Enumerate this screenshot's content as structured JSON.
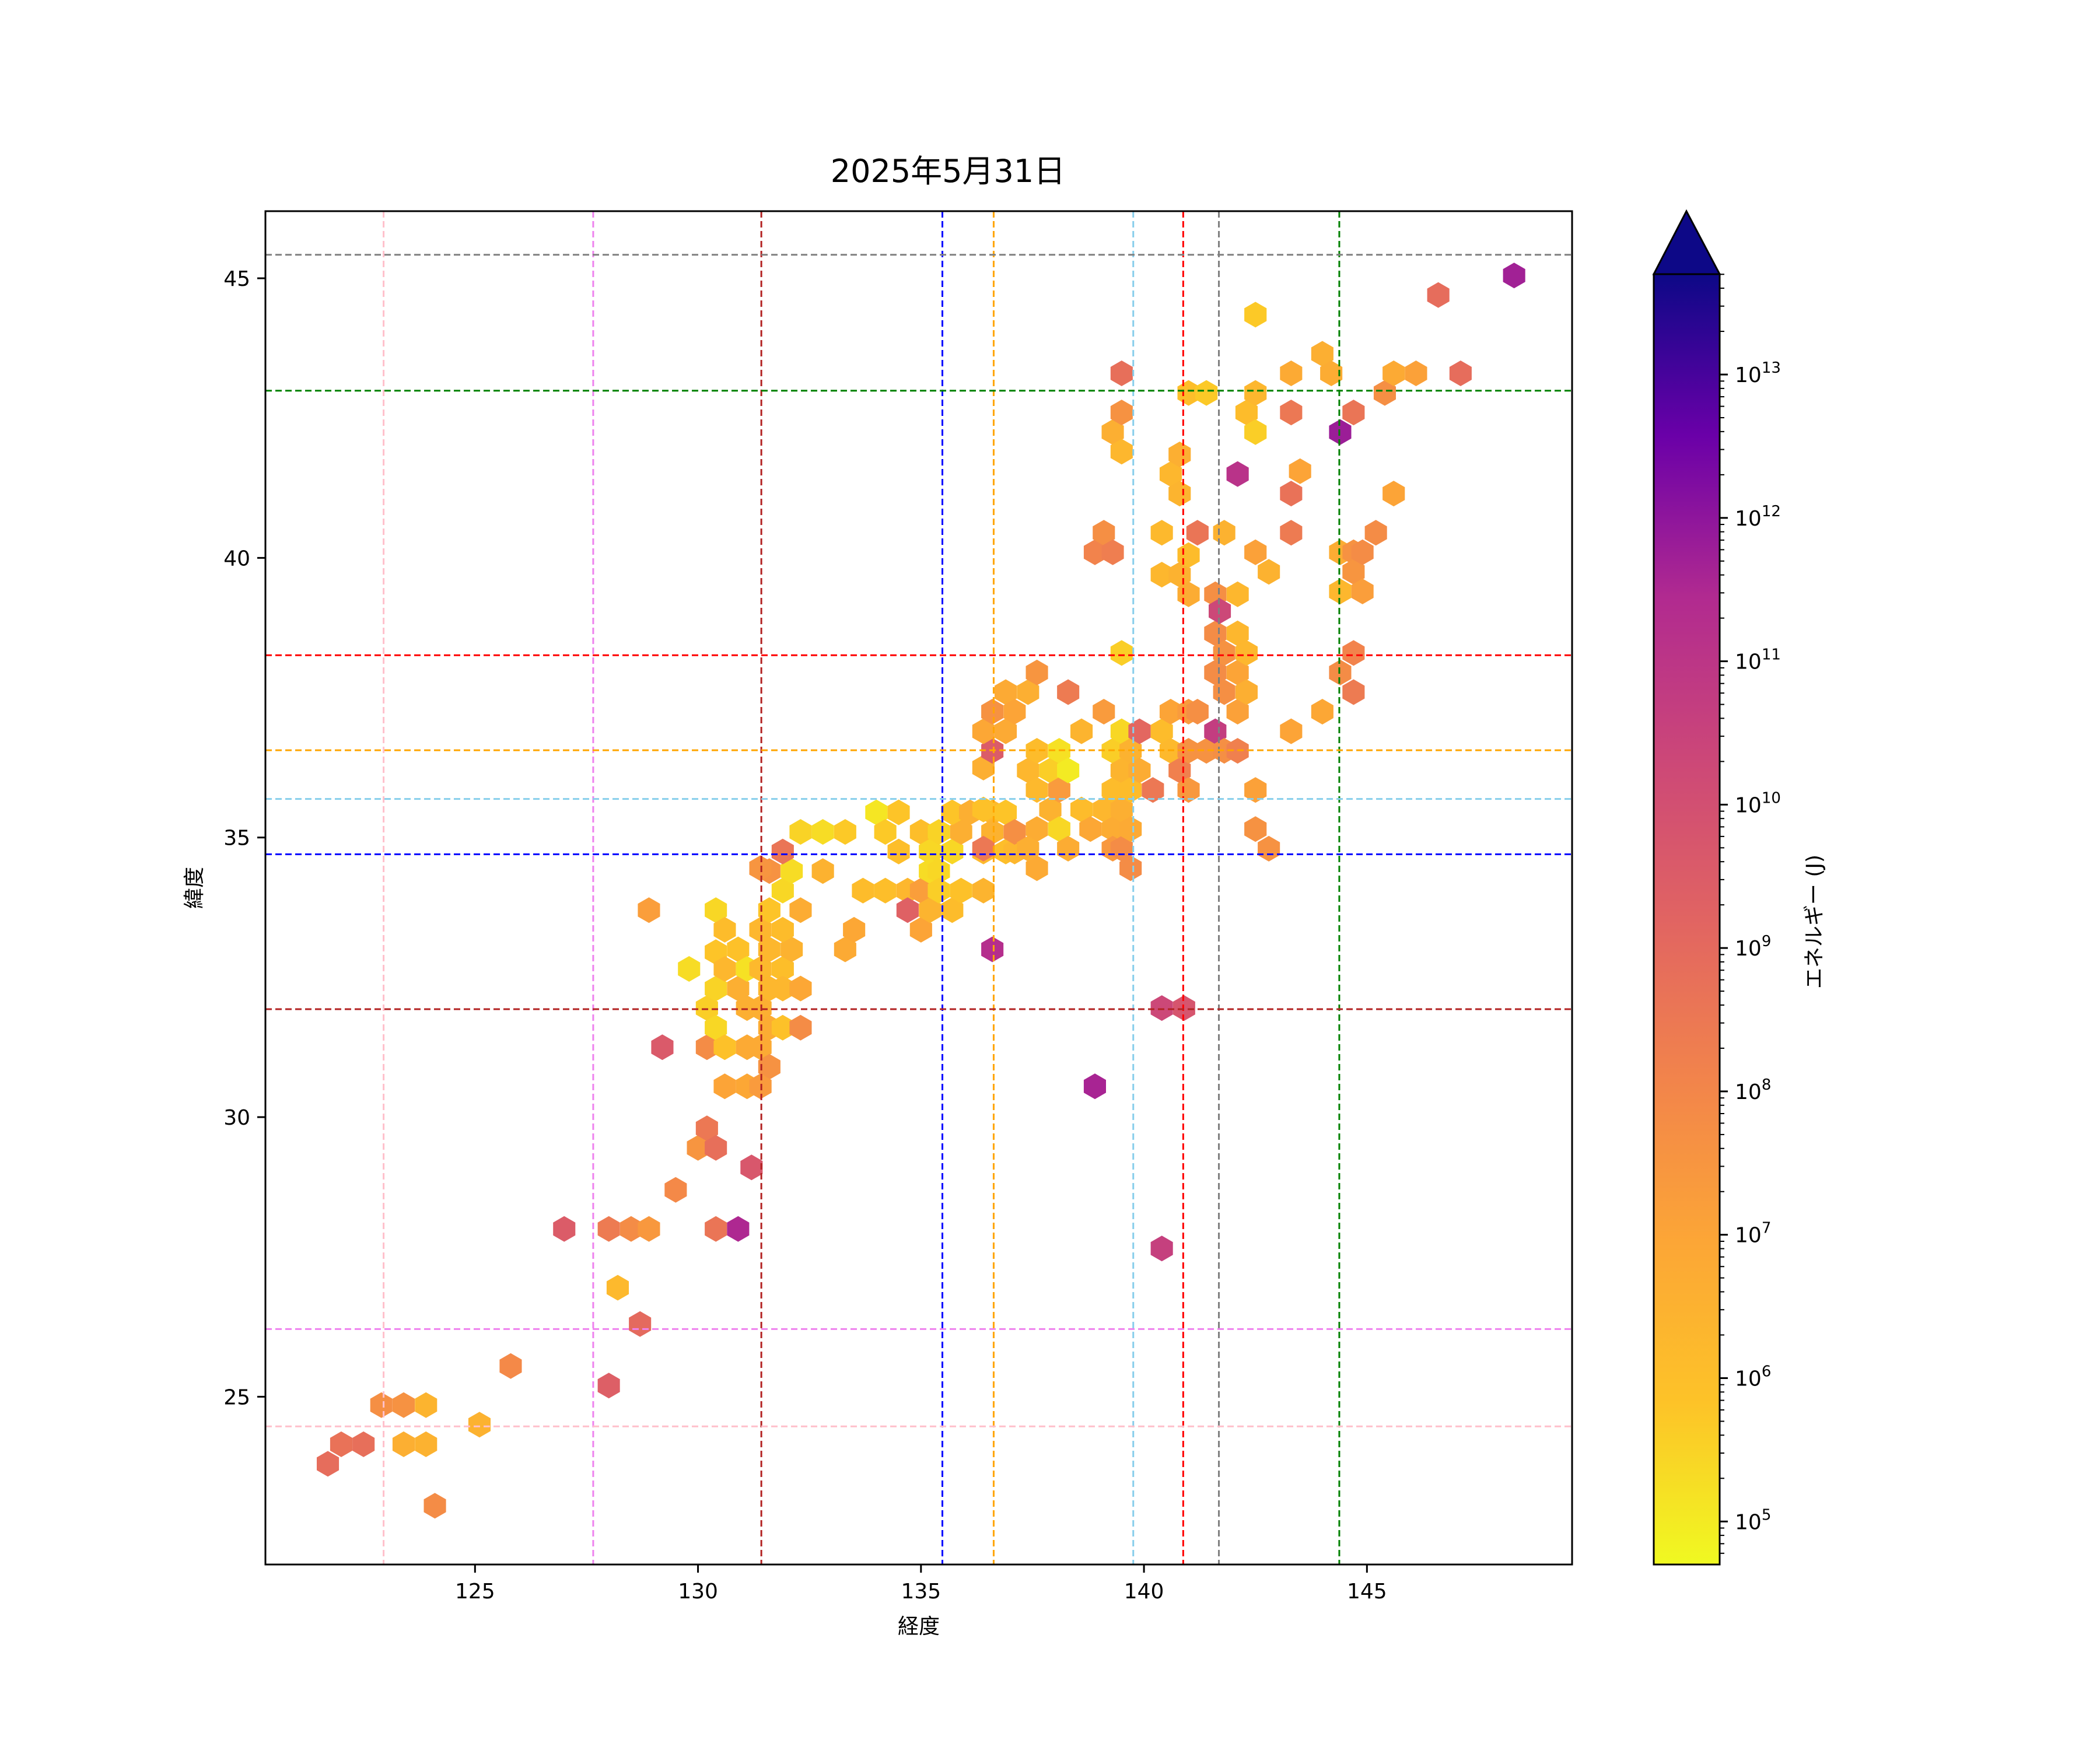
{
  "chart_data": {
    "type": "hexbin",
    "title": "2025年5月31日",
    "xlabel": "経度",
    "ylabel": "緯度",
    "xlim": [
      120.3,
      149.6
    ],
    "ylim": [
      22.0,
      46.2
    ],
    "xticks": [
      125,
      130,
      135,
      140,
      145
    ],
    "yticks": [
      25,
      30,
      35,
      40,
      45
    ],
    "colorbar": {
      "label": "エネルギー (J)",
      "scale": "log",
      "min_exp": 4.7,
      "max_exp": 13.7,
      "extend": "max",
      "ticks": [
        {
          "base": "10",
          "exp": "5",
          "value": 5
        },
        {
          "base": "10",
          "exp": "6",
          "value": 6
        },
        {
          "base": "10",
          "exp": "7",
          "value": 7
        },
        {
          "base": "10",
          "exp": "8",
          "value": 8
        },
        {
          "base": "10",
          "exp": "9",
          "value": 9
        },
        {
          "base": "10",
          "exp": "10",
          "value": 10
        },
        {
          "base": "10",
          "exp": "11",
          "value": 11
        },
        {
          "base": "10",
          "exp": "12",
          "value": 12
        },
        {
          "base": "10",
          "exp": "13",
          "value": 13
        }
      ]
    },
    "reference_lines": {
      "vertical": [
        {
          "x": 122.95,
          "color": "#ffc0cb"
        },
        {
          "x": 127.65,
          "color": "#ee82ee"
        },
        {
          "x": 131.42,
          "color": "#b22222"
        },
        {
          "x": 135.48,
          "color": "#0000ff"
        },
        {
          "x": 136.63,
          "color": "#ffa500"
        },
        {
          "x": 139.76,
          "color": "#87ceeb"
        },
        {
          "x": 140.88,
          "color": "#ff0000"
        },
        {
          "x": 141.68,
          "color": "#808080"
        },
        {
          "x": 144.38,
          "color": "#008000"
        }
      ],
      "horizontal": [
        {
          "y": 45.42,
          "color": "#808080"
        },
        {
          "y": 42.99,
          "color": "#008000"
        },
        {
          "y": 38.26,
          "color": "#ff0000"
        },
        {
          "y": 36.56,
          "color": "#ffa500"
        },
        {
          "y": 35.69,
          "color": "#87ceeb"
        },
        {
          "y": 34.7,
          "color": "#0000ff"
        },
        {
          "y": 31.93,
          "color": "#b22222"
        },
        {
          "y": 26.21,
          "color": "#ee82ee"
        },
        {
          "y": 24.47,
          "color": "#ffc0cb"
        }
      ]
    },
    "points": [
      [
        121.7,
        23.8,
        8.9
      ],
      [
        122.0,
        24.15,
        8.7
      ],
      [
        122.5,
        24.15,
        8.8
      ],
      [
        122.9,
        24.85,
        7.7
      ],
      [
        123.4,
        24.85,
        7.6
      ],
      [
        123.9,
        24.85,
        6.4
      ],
      [
        123.4,
        24.15,
        6.6
      ],
      [
        123.9,
        24.15,
        6.5
      ],
      [
        124.1,
        23.05,
        7.8
      ],
      [
        125.1,
        24.5,
        6.5
      ],
      [
        125.8,
        25.55,
        7.9
      ],
      [
        127.0,
        28.0,
        9.5
      ],
      [
        128.0,
        28.0,
        8.4
      ],
      [
        128.5,
        28.0,
        7.8
      ],
      [
        128.9,
        28.0,
        7.4
      ],
      [
        128.2,
        26.95,
        6.2
      ],
      [
        128.0,
        25.2,
        9.4
      ],
      [
        128.7,
        26.3,
        9.0
      ],
      [
        129.5,
        28.7,
        7.9
      ],
      [
        130.0,
        29.45,
        7.5
      ],
      [
        130.2,
        29.8,
        8.5
      ],
      [
        130.4,
        29.45,
        8.8
      ],
      [
        130.4,
        28.0,
        8.6
      ],
      [
        130.9,
        28.0,
        11.5
      ],
      [
        131.2,
        29.1,
        9.7
      ],
      [
        129.2,
        31.25,
        9.6
      ],
      [
        128.9,
        33.7,
        7.2
      ],
      [
        129.8,
        32.65,
        5.3
      ],
      [
        130.2,
        31.95,
        5.6
      ],
      [
        130.2,
        31.25,
        7.8
      ],
      [
        130.4,
        31.6,
        5.4
      ],
      [
        130.6,
        31.25,
        5.9
      ],
      [
        130.4,
        32.3,
        5.5
      ],
      [
        130.4,
        32.95,
        5.8
      ],
      [
        130.4,
        33.7,
        5.4
      ],
      [
        130.6,
        33.35,
        6.1
      ],
      [
        130.6,
        32.65,
        6.3
      ],
      [
        130.9,
        33.0,
        5.9
      ],
      [
        130.9,
        32.3,
        6.6
      ],
      [
        131.1,
        32.65,
        5.2
      ],
      [
        131.1,
        31.95,
        6.6
      ],
      [
        131.1,
        31.25,
        6.8
      ],
      [
        131.1,
        30.55,
        6.9
      ],
      [
        130.6,
        30.55,
        7.0
      ],
      [
        131.4,
        33.35,
        6.3
      ],
      [
        131.4,
        32.65,
        6.2
      ],
      [
        131.4,
        31.95,
        6.6
      ],
      [
        131.4,
        31.25,
        6.8
      ],
      [
        131.6,
        32.3,
        6.3
      ],
      [
        131.6,
        31.6,
        6.7
      ],
      [
        131.6,
        30.9,
        7.6
      ],
      [
        131.4,
        30.55,
        7.3
      ],
      [
        131.6,
        33.7,
        5.8
      ],
      [
        131.9,
        32.65,
        6.0
      ],
      [
        131.9,
        32.3,
        6.3
      ],
      [
        131.9,
        31.6,
        5.9
      ],
      [
        132.1,
        33.0,
        6.5
      ],
      [
        131.9,
        33.35,
        6.1
      ],
      [
        131.6,
        33.0,
        6.3
      ],
      [
        132.3,
        32.3,
        6.9
      ],
      [
        132.3,
        31.6,
        7.8
      ],
      [
        132.3,
        33.7,
        6.7
      ],
      [
        131.9,
        34.05,
        5.4
      ],
      [
        132.1,
        34.4,
        5.3
      ],
      [
        131.6,
        34.4,
        7.6
      ],
      [
        131.4,
        34.45,
        7.5
      ],
      [
        131.9,
        34.75,
        8.6
      ],
      [
        132.3,
        35.1,
        5.5
      ],
      [
        132.8,
        35.1,
        5.3
      ],
      [
        133.3,
        35.1,
        5.7
      ],
      [
        132.8,
        34.4,
        6.5
      ],
      [
        133.3,
        33.0,
        6.8
      ],
      [
        133.5,
        33.35,
        6.9
      ],
      [
        133.7,
        34.05,
        6.1
      ],
      [
        134.2,
        34.05,
        6.0
      ],
      [
        134.0,
        35.45,
        5.1
      ],
      [
        134.2,
        35.1,
        5.7
      ],
      [
        134.5,
        35.45,
        5.8
      ],
      [
        134.5,
        34.75,
        6.0
      ],
      [
        134.7,
        34.05,
        6.3
      ],
      [
        134.7,
        33.7,
        9.3
      ],
      [
        135.0,
        34.05,
        7.2
      ],
      [
        135.0,
        33.35,
        7.0
      ],
      [
        135.0,
        35.1,
        6.0
      ],
      [
        135.2,
        34.75,
        5.4
      ],
      [
        135.2,
        34.4,
        5.3
      ],
      [
        135.2,
        33.7,
        6.4
      ],
      [
        135.4,
        35.1,
        5.5
      ],
      [
        135.4,
        34.4,
        5.4
      ],
      [
        135.4,
        34.05,
        5.6
      ],
      [
        135.7,
        34.75,
        5.4
      ],
      [
        135.7,
        33.7,
        6.1
      ],
      [
        135.9,
        35.1,
        6.6
      ],
      [
        135.9,
        34.05,
        5.9
      ],
      [
        135.7,
        35.45,
        5.8
      ],
      [
        136.1,
        35.45,
        6.6
      ],
      [
        136.4,
        34.05,
        6.4
      ],
      [
        136.4,
        34.75,
        6.2
      ],
      [
        136.6,
        35.45,
        6.2
      ],
      [
        136.6,
        33.0,
        11.3
      ],
      [
        136.4,
        35.5,
        5.9
      ],
      [
        136.6,
        35.1,
        6.5
      ],
      [
        136.9,
        35.45,
        5.8
      ],
      [
        136.9,
        34.75,
        6.0
      ],
      [
        137.1,
        34.75,
        6.3
      ],
      [
        137.1,
        35.1,
        7.7
      ],
      [
        136.4,
        34.8,
        8.5
      ],
      [
        136.4,
        36.25,
        6.6
      ],
      [
        136.6,
        36.55,
        9.5
      ],
      [
        136.4,
        36.9,
        6.9
      ],
      [
        136.6,
        37.25,
        7.6
      ],
      [
        136.9,
        37.6,
        6.8
      ],
      [
        136.9,
        36.9,
        6.8
      ],
      [
        137.1,
        37.25,
        7.0
      ],
      [
        137.4,
        37.6,
        6.6
      ],
      [
        137.4,
        36.2,
        6.3
      ],
      [
        137.6,
        37.95,
        7.5
      ],
      [
        137.6,
        36.55,
        6.1
      ],
      [
        137.6,
        35.85,
        6.2
      ],
      [
        137.6,
        35.15,
        6.7
      ],
      [
        137.6,
        34.45,
        6.8
      ],
      [
        137.4,
        34.8,
        6.6
      ],
      [
        137.9,
        36.2,
        5.6
      ],
      [
        137.9,
        35.5,
        6.5
      ],
      [
        138.1,
        36.55,
        5.2
      ],
      [
        138.1,
        35.85,
        7.3
      ],
      [
        138.1,
        35.15,
        5.4
      ],
      [
        138.3,
        36.2,
        5.0
      ],
      [
        138.3,
        34.8,
        6.7
      ],
      [
        138.3,
        37.6,
        8.4
      ],
      [
        138.6,
        36.9,
        6.4
      ],
      [
        138.6,
        35.5,
        6.1
      ],
      [
        138.8,
        35.15,
        6.9
      ],
      [
        138.9,
        40.1,
        8.1
      ],
      [
        139.1,
        40.45,
        7.7
      ],
      [
        139.3,
        40.1,
        8.3
      ],
      [
        139.1,
        37.25,
        7.3
      ],
      [
        139.1,
        35.5,
        6.3
      ],
      [
        139.3,
        36.55,
        5.6
      ],
      [
        139.3,
        35.85,
        6.1
      ],
      [
        139.3,
        35.15,
        6.7
      ],
      [
        139.3,
        34.8,
        7.4
      ],
      [
        139.5,
        36.9,
        5.4
      ],
      [
        139.5,
        36.2,
        6.4
      ],
      [
        139.5,
        35.5,
        6.6
      ],
      [
        139.5,
        34.8,
        7.8
      ],
      [
        139.5,
        38.3,
        5.6
      ],
      [
        139.3,
        42.25,
        6.6
      ],
      [
        139.5,
        42.6,
        7.6
      ],
      [
        139.5,
        43.3,
        8.8
      ],
      [
        139.5,
        41.9,
        6.3
      ],
      [
        139.7,
        36.55,
        6.5
      ],
      [
        139.7,
        35.85,
        6.1
      ],
      [
        139.7,
        35.15,
        6.8
      ],
      [
        139.7,
        34.45,
        7.8
      ],
      [
        139.9,
        36.2,
        6.7
      ],
      [
        139.9,
        36.9,
        9.1
      ],
      [
        140.2,
        35.85,
        8.5
      ],
      [
        140.4,
        36.9,
        6.1
      ],
      [
        140.4,
        39.7,
        6.3
      ],
      [
        140.4,
        40.45,
        6.2
      ],
      [
        140.6,
        41.5,
        6.3
      ],
      [
        140.6,
        37.25,
        7.0
      ],
      [
        140.6,
        36.55,
        6.2
      ],
      [
        140.8,
        41.85,
        6.6
      ],
      [
        140.8,
        39.7,
        6.5
      ],
      [
        140.8,
        41.15,
        6.4
      ],
      [
        140.8,
        36.2,
        8.2
      ],
      [
        141.0,
        40.05,
        6.1
      ],
      [
        141.0,
        39.35,
        6.7
      ],
      [
        141.0,
        37.25,
        7.3
      ],
      [
        141.0,
        36.55,
        7.6
      ],
      [
        141.0,
        35.85,
        7.4
      ],
      [
        141.0,
        42.95,
        6.0
      ],
      [
        141.2,
        40.45,
        8.6
      ],
      [
        141.2,
        37.25,
        7.7
      ],
      [
        141.4,
        36.55,
        7.6
      ],
      [
        141.4,
        42.95,
        5.7
      ],
      [
        141.6,
        39.35,
        7.7
      ],
      [
        141.6,
        38.65,
        7.8
      ],
      [
        141.6,
        37.95,
        7.8
      ],
      [
        141.6,
        36.9,
        10.7
      ],
      [
        141.7,
        39.05,
        10.3
      ],
      [
        141.8,
        36.55,
        7.7
      ],
      [
        141.8,
        38.3,
        7.6
      ],
      [
        141.8,
        37.6,
        7.7
      ],
      [
        141.8,
        40.45,
        6.5
      ],
      [
        142.1,
        39.35,
        6.3
      ],
      [
        142.1,
        38.65,
        6.3
      ],
      [
        142.1,
        37.95,
        7.0
      ],
      [
        142.1,
        37.25,
        7.1
      ],
      [
        142.1,
        36.55,
        8.2
      ],
      [
        142.1,
        41.5,
        11.1
      ],
      [
        142.3,
        38.3,
        6.3
      ],
      [
        142.3,
        37.6,
        6.6
      ],
      [
        142.3,
        42.6,
        6.1
      ],
      [
        142.5,
        42.95,
        6.3
      ],
      [
        142.5,
        42.25,
        5.6
      ],
      [
        142.5,
        44.35,
        5.7
      ],
      [
        142.5,
        40.1,
        7.1
      ],
      [
        142.5,
        35.85,
        7.1
      ],
      [
        142.5,
        35.15,
        7.6
      ],
      [
        142.8,
        34.8,
        7.6
      ],
      [
        142.8,
        39.75,
        6.5
      ],
      [
        143.3,
        42.6,
        8.5
      ],
      [
        143.3,
        43.3,
        6.8
      ],
      [
        143.3,
        41.15,
        8.7
      ],
      [
        143.3,
        40.45,
        8.4
      ],
      [
        143.3,
        36.9,
        7.0
      ],
      [
        143.5,
        41.55,
        7.0
      ],
      [
        144.0,
        43.65,
        6.6
      ],
      [
        144.2,
        43.3,
        6.7
      ],
      [
        144.0,
        37.25,
        6.9
      ],
      [
        144.4,
        42.25,
        11.8
      ],
      [
        144.4,
        40.1,
        6.7
      ],
      [
        144.4,
        39.4,
        6.3
      ],
      [
        144.4,
        37.95,
        7.8
      ],
      [
        144.7,
        42.6,
        8.6
      ],
      [
        144.7,
        40.1,
        7.6
      ],
      [
        144.7,
        39.75,
        7.5
      ],
      [
        144.7,
        38.3,
        8.1
      ],
      [
        144.7,
        37.6,
        8.4
      ],
      [
        144.9,
        40.1,
        7.8
      ],
      [
        144.9,
        39.4,
        7.2
      ],
      [
        145.2,
        40.45,
        7.8
      ],
      [
        145.4,
        42.95,
        7.7
      ],
      [
        145.6,
        43.3,
        6.8
      ],
      [
        145.6,
        41.15,
        7.0
      ],
      [
        146.1,
        43.3,
        7.1
      ],
      [
        146.6,
        44.7,
        8.9
      ],
      [
        147.1,
        43.3,
        8.9
      ],
      [
        148.3,
        45.05,
        11.7
      ],
      [
        138.9,
        30.55,
        11.6
      ],
      [
        140.4,
        31.95,
        10.3
      ],
      [
        140.9,
        31.95,
        9.8
      ],
      [
        140.4,
        27.65,
        10.6
      ]
    ]
  }
}
